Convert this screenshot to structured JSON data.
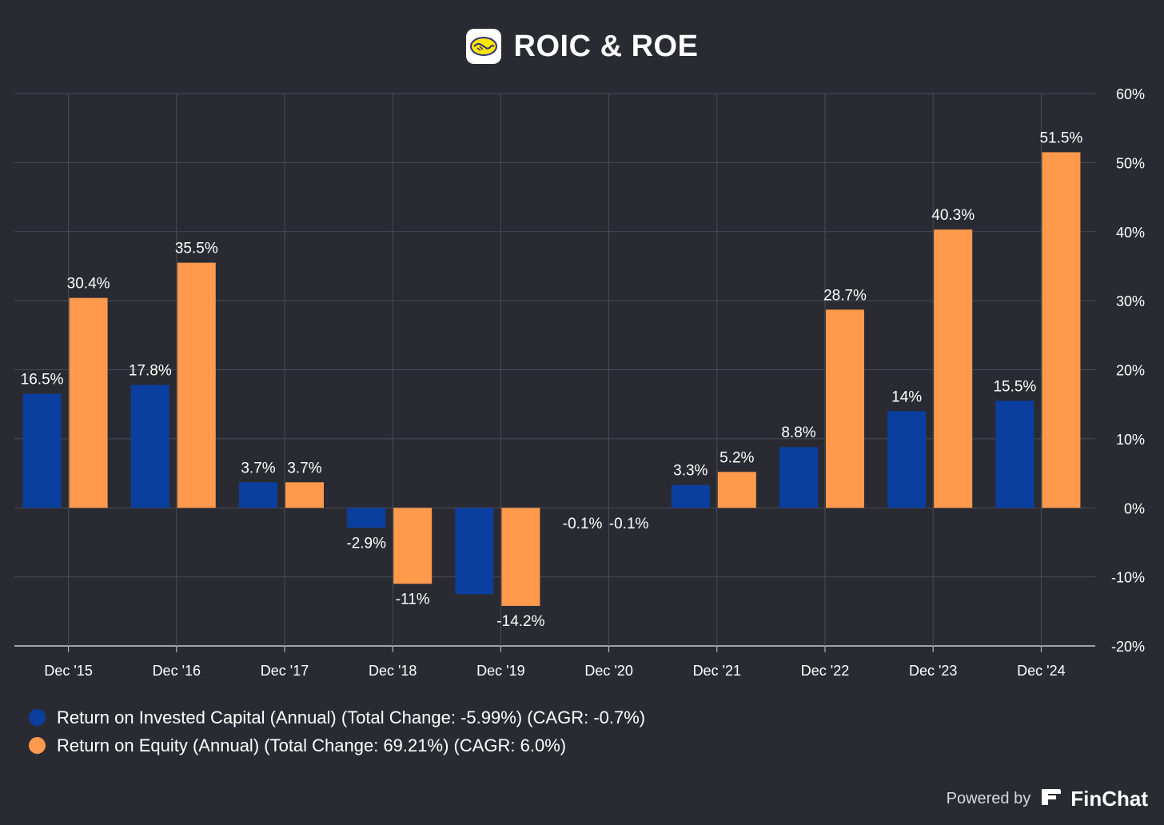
{
  "header": {
    "title": "ROIC & ROE",
    "logo_icon": "handshake-logo-icon"
  },
  "chart_data": {
    "type": "bar",
    "categories": [
      "Dec '15",
      "Dec '16",
      "Dec '17",
      "Dec '18",
      "Dec '19",
      "Dec '20",
      "Dec '21",
      "Dec '22",
      "Dec '23",
      "Dec '24"
    ],
    "series": [
      {
        "name": "Return on Invested Capital (Annual) (Total Change: -5.99%) (CAGR: -0.7%)",
        "color": "#0a3fa0",
        "values": [
          16.5,
          17.8,
          3.7,
          -2.9,
          -12.5,
          -0.1,
          3.3,
          8.8,
          14,
          15.5
        ],
        "labels": [
          "16.5%",
          "17.8%",
          "3.7%",
          "-2.9%",
          "",
          "-0.1%",
          "3.3%",
          "8.8%",
          "14%",
          "15.5%"
        ]
      },
      {
        "name": "Return on Equity (Annual) (Total Change: 69.21%) (CAGR: 6.0%)",
        "color": "#ff9a4d",
        "values": [
          30.4,
          35.5,
          3.7,
          -11,
          -14.2,
          -0.1,
          5.2,
          28.7,
          40.3,
          51.5
        ],
        "labels": [
          "30.4%",
          "35.5%",
          "3.7%",
          "-11%",
          "-14.2%",
          "-0.1%",
          "5.2%",
          "28.7%",
          "40.3%",
          "51.5%"
        ]
      }
    ],
    "y_ticks": [
      "60%",
      "50%",
      "40%",
      "30%",
      "20%",
      "10%",
      "0%",
      "-10%",
      "-20%"
    ],
    "ylim": [
      -20,
      60
    ],
    "axis_position": "right",
    "grid": true,
    "legend_position": "bottom-left"
  },
  "footer": {
    "powered_by": "Powered by",
    "brand": "FinChat",
    "brand_icon": "finchat-logo-icon"
  }
}
